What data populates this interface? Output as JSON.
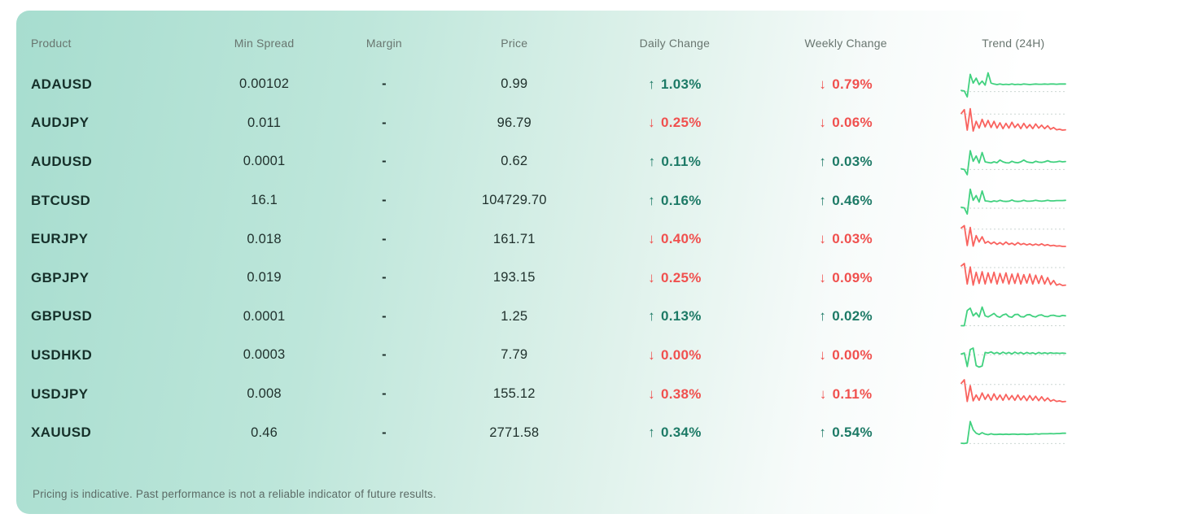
{
  "colors": {
    "positive": "#1d7a66",
    "negative": "#f0504e",
    "spark_positive": "#41d17f",
    "spark_negative": "#f9625e",
    "spark_baseline": "#ccd6d2"
  },
  "icons": {
    "up_arrow": "↑",
    "down_arrow": "↓"
  },
  "table": {
    "columns": [
      {
        "key": "product",
        "label": "Product"
      },
      {
        "key": "min_spread",
        "label": "Min Spread"
      },
      {
        "key": "margin",
        "label": "Margin"
      },
      {
        "key": "price",
        "label": "Price"
      },
      {
        "key": "daily_change",
        "label": "Daily Change"
      },
      {
        "key": "weekly_change",
        "label": "Weekly Change"
      },
      {
        "key": "trend",
        "label": "Trend (24H)"
      }
    ],
    "rows": [
      {
        "product": "ADAUSD",
        "min_spread": "0.00102",
        "margin": "-",
        "price": "0.99",
        "daily_change": {
          "dir": "up",
          "value": "1.03%"
        },
        "weekly_change": {
          "dir": "down",
          "value": "0.79%"
        },
        "trend": {
          "direction": "up",
          "baseline": 26,
          "values": [
            30,
            28,
            8,
            85,
            55,
            72,
            50,
            62,
            48,
            90,
            55,
            52,
            50,
            52,
            50,
            51,
            50,
            52,
            50,
            51,
            50,
            52,
            51,
            50,
            51,
            52,
            51,
            51,
            52,
            51,
            52,
            52,
            51,
            52,
            52,
            52
          ]
        }
      },
      {
        "product": "AUDJPY",
        "min_spread": "0.011",
        "margin": "-",
        "price": "96.79",
        "daily_change": {
          "dir": "down",
          "value": "0.25%"
        },
        "weekly_change": {
          "dir": "down",
          "value": "0.06%"
        },
        "trend": {
          "direction": "down",
          "baseline": 80,
          "values": [
            82,
            95,
            25,
            98,
            22,
            55,
            32,
            62,
            36,
            58,
            34,
            55,
            32,
            50,
            30,
            48,
            32,
            52,
            34,
            46,
            30,
            48,
            32,
            44,
            30,
            46,
            32,
            42,
            30,
            40,
            28,
            34,
            26,
            28,
            25,
            26
          ]
        }
      },
      {
        "product": "AUDUSD",
        "min_spread": "0.0001",
        "margin": "-",
        "price": "0.62",
        "daily_change": {
          "dir": "up",
          "value": "0.11%"
        },
        "weekly_change": {
          "dir": "up",
          "value": "0.03%"
        },
        "trend": {
          "direction": "up",
          "baseline": 24,
          "values": [
            26,
            24,
            6,
            88,
            52,
            70,
            46,
            82,
            50,
            48,
            46,
            50,
            47,
            56,
            50,
            47,
            46,
            52,
            48,
            47,
            50,
            56,
            50,
            48,
            47,
            52,
            49,
            48,
            50,
            54,
            50,
            49,
            50,
            52,
            50,
            51
          ]
        }
      },
      {
        "product": "BTCUSD",
        "min_spread": "16.1",
        "margin": "-",
        "price": "104729.70",
        "daily_change": {
          "dir": "up",
          "value": "0.16%"
        },
        "weekly_change": {
          "dir": "up",
          "value": "0.46%"
        },
        "trend": {
          "direction": "up",
          "baseline": 25,
          "values": [
            28,
            26,
            5,
            90,
            52,
            68,
            46,
            84,
            50,
            49,
            47,
            50,
            48,
            52,
            49,
            48,
            49,
            53,
            49,
            48,
            49,
            52,
            49,
            49,
            50,
            52,
            50,
            49,
            50,
            52,
            50,
            50,
            51,
            51,
            51,
            52
          ]
        }
      },
      {
        "product": "EURJPY",
        "min_spread": "0.018",
        "margin": "-",
        "price": "161.71",
        "daily_change": {
          "dir": "down",
          "value": "0.40%"
        },
        "weekly_change": {
          "dir": "down",
          "value": "0.03%"
        },
        "trend": {
          "direction": "down",
          "baseline": 84,
          "values": [
            88,
            96,
            28,
            90,
            26,
            62,
            40,
            58,
            36,
            42,
            34,
            40,
            32,
            38,
            31,
            40,
            32,
            36,
            30,
            38,
            31,
            35,
            30,
            34,
            29,
            33,
            29,
            34,
            28,
            31,
            27,
            29,
            26,
            27,
            25,
            25
          ]
        }
      },
      {
        "product": "GBPJPY",
        "min_spread": "0.019",
        "margin": "-",
        "price": "193.15",
        "daily_change": {
          "dir": "down",
          "value": "0.25%"
        },
        "weekly_change": {
          "dir": "down",
          "value": "0.09%"
        },
        "trend": {
          "direction": "down",
          "baseline": 86,
          "values": [
            92,
            100,
            30,
            88,
            26,
            70,
            32,
            72,
            30,
            68,
            34,
            70,
            30,
            66,
            34,
            68,
            30,
            64,
            32,
            66,
            30,
            62,
            33,
            64,
            30,
            60,
            32,
            58,
            30,
            52,
            28,
            42,
            26,
            30,
            25,
            26
          ]
        }
      },
      {
        "product": "GBPUSD",
        "min_spread": "0.0001",
        "margin": "-",
        "price": "1.25",
        "daily_change": {
          "dir": "up",
          "value": "0.13%"
        },
        "weekly_change": {
          "dir": "up",
          "value": "0.02%"
        },
        "trend": {
          "direction": "up",
          "baseline": 18,
          "values": [
            18,
            18,
            70,
            78,
            52,
            62,
            48,
            82,
            52,
            48,
            54,
            60,
            50,
            47,
            55,
            58,
            49,
            47,
            56,
            57,
            49,
            48,
            55,
            56,
            50,
            48,
            54,
            55,
            50,
            49,
            53,
            54,
            51,
            50,
            53,
            52
          ]
        }
      },
      {
        "product": "USDHKD",
        "min_spread": "0.0003",
        "margin": "-",
        "price": "7.79",
        "daily_change": {
          "dir": "down",
          "value": "0.00%"
        },
        "weekly_change": {
          "dir": "down",
          "value": "0.00%"
        },
        "trend": {
          "direction": "up",
          "baseline": 52,
          "values": [
            55,
            58,
            12,
            70,
            75,
            15,
            10,
            14,
            60,
            58,
            62,
            56,
            60,
            55,
            61,
            56,
            60,
            55,
            61,
            56,
            60,
            55,
            60,
            56,
            59,
            55,
            60,
            56,
            59,
            56,
            59,
            57,
            58,
            57,
            58,
            57
          ]
        }
      },
      {
        "product": "USDJPY",
        "min_spread": "0.008",
        "margin": "-",
        "price": "155.12",
        "daily_change": {
          "dir": "down",
          "value": "0.38%"
        },
        "weekly_change": {
          "dir": "down",
          "value": "0.11%"
        },
        "trend": {
          "direction": "down",
          "baseline": 84,
          "values": [
            88,
            100,
            26,
            80,
            28,
            48,
            30,
            55,
            33,
            50,
            30,
            52,
            32,
            48,
            30,
            50,
            32,
            46,
            30,
            48,
            31,
            45,
            29,
            46,
            30,
            44,
            29,
            42,
            28,
            38,
            27,
            32,
            26,
            28,
            25,
            26
          ]
        }
      },
      {
        "product": "XAUUSD",
        "min_spread": "0.46",
        "margin": "-",
        "price": "2771.58",
        "daily_change": {
          "dir": "up",
          "value": "0.34%"
        },
        "weekly_change": {
          "dir": "up",
          "value": "0.54%"
        },
        "trend": {
          "direction": "up",
          "baseline": 13,
          "values": [
            14,
            13,
            15,
            88,
            60,
            48,
            44,
            50,
            45,
            43,
            46,
            44,
            44,
            45,
            44,
            45,
            44,
            45,
            45,
            44,
            45,
            45,
            44,
            45,
            45,
            46,
            45,
            46,
            46,
            46,
            47,
            46,
            47,
            47,
            48,
            48
          ]
        }
      }
    ]
  },
  "footer": {
    "disclaimer": "Pricing is indicative. Past performance is not a reliable indicator of future results."
  }
}
